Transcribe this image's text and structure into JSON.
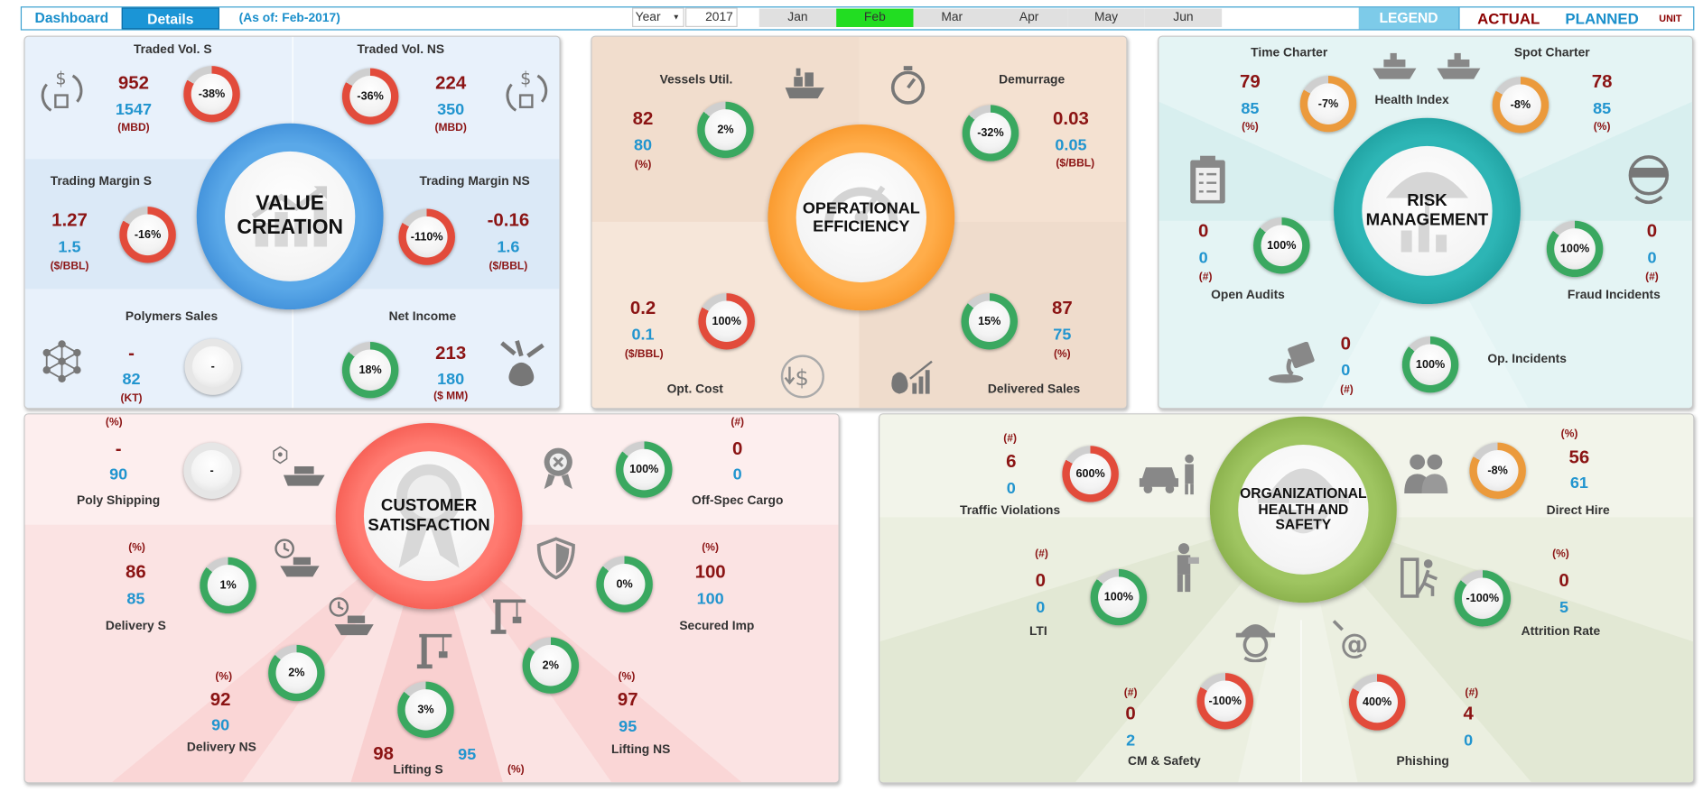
{
  "topbar": {
    "dashboard_tab": "Dashboard",
    "details_tab": "Details",
    "as_of": "(As of: Feb-2017)",
    "period_type": "Year",
    "year": "2017",
    "months": [
      "Jan",
      "Feb",
      "Mar",
      "Apr",
      "May",
      "Jun"
    ],
    "active_month": "Feb",
    "legend": "LEGEND",
    "actual": "ACTUAL",
    "planned": "PLANNED",
    "unit": "UNIT"
  },
  "colors": {
    "accent_blue": "#1b95d6",
    "actual_red": "#8b1414",
    "planned_blue": "#2295cf",
    "active_month_green": "#22dd22",
    "gauge_red": "#e24b3b",
    "gauge_green": "#3aa860",
    "gauge_orange": "#eb9a3c"
  },
  "value_creation": {
    "title": "VALUE CREATION",
    "traded_s": {
      "label": "Traded Vol. S",
      "actual": "952",
      "planned": "1547",
      "unit": "(MBD)",
      "pct": "-38%"
    },
    "traded_ns": {
      "label": "Traded Vol. NS",
      "actual": "224",
      "planned": "350",
      "unit": "(MBD)",
      "pct": "-36%"
    },
    "margin_s": {
      "label": "Trading Margin S",
      "actual": "1.27",
      "planned": "1.5",
      "unit": "($/BBL)",
      "pct": "-16%"
    },
    "margin_ns": {
      "label": "Trading Margin NS",
      "actual": "-0.16",
      "planned": "1.6",
      "unit": "($/BBL)",
      "pct": "-110%"
    },
    "polymers": {
      "label": "Polymers Sales",
      "actual": "-",
      "planned": "82",
      "unit": "(KT)",
      "pct": "-"
    },
    "net_income": {
      "label": "Net Income",
      "actual": "213",
      "planned": "180",
      "unit": "($ MM)",
      "pct": "18%"
    }
  },
  "operational_efficiency": {
    "title": "OPERATIONAL EFFICIENCY",
    "vessels": {
      "label": "Vessels Util.",
      "actual": "82",
      "planned": "80",
      "unit": "(%)",
      "pct": "2%"
    },
    "demurrage": {
      "label": "Demurrage",
      "actual": "0.03",
      "planned": "0.05",
      "unit": "($/BBL)",
      "pct": "-32%"
    },
    "opt_cost": {
      "label": "Opt. Cost",
      "actual": "0.2",
      "planned": "0.1",
      "unit": "($/BBL)",
      "pct": "100%"
    },
    "delivered": {
      "label": "Delivered Sales",
      "actual": "87",
      "planned": "75",
      "unit": "(%)",
      "pct": "15%"
    }
  },
  "risk_management": {
    "title": "RISK MANAGEMENT",
    "health_index": "Health Index",
    "time_charter": {
      "label": "Time Charter",
      "actual": "79",
      "planned": "85",
      "unit": "(%)",
      "pct": "-7%"
    },
    "spot_charter": {
      "label": "Spot Charter",
      "actual": "78",
      "planned": "85",
      "unit": "(%)",
      "pct": "-8%"
    },
    "open_audits": {
      "label": "Open Audits",
      "actual": "0",
      "planned": "0",
      "unit": "(#)",
      "pct": "100%"
    },
    "fraud": {
      "label": "Fraud Incidents",
      "actual": "0",
      "planned": "0",
      "unit": "(#)",
      "pct": "100%"
    },
    "op_incidents": {
      "label": "Op. Incidents",
      "actual": "0",
      "planned": "0",
      "unit": "(#)",
      "pct": "100%"
    }
  },
  "customer_satisfaction": {
    "title": "CUSTOMER SATISFACTION",
    "poly_shipping": {
      "label": "Poly Shipping",
      "actual": "-",
      "planned": "90",
      "unit": "(%)",
      "pct": "-"
    },
    "off_spec": {
      "label": "Off-Spec Cargo",
      "actual": "0",
      "planned": "0",
      "unit": "(#)",
      "pct": "100%"
    },
    "delivery_s": {
      "label": "Delivery S",
      "actual": "86",
      "planned": "85",
      "unit": "(%)",
      "pct": "1%"
    },
    "secured_imp": {
      "label": "Secured Imp",
      "actual": "100",
      "planned": "100",
      "unit": "(%)",
      "pct": "0%"
    },
    "delivery_ns": {
      "label": "Delivery NS",
      "actual": "92",
      "planned": "90",
      "unit": "(%)",
      "pct": "2%"
    },
    "lifting_s": {
      "label": "Lifting S",
      "actual": "98",
      "planned": "95",
      "unit": "(%)",
      "pct": "3%"
    },
    "lifting_ns": {
      "label": "Lifting NS",
      "actual": "97",
      "planned": "95",
      "unit": "(%)",
      "pct": "2%"
    }
  },
  "ohs": {
    "title": "ORGANIZATIONAL HEALTH AND SAFETY",
    "traffic": {
      "label": "Traffic Violations",
      "actual": "6",
      "planned": "0",
      "unit": "(#)",
      "pct": "600%"
    },
    "direct_hire": {
      "label": "Direct Hire",
      "actual": "56",
      "planned": "61",
      "unit": "(%)",
      "pct": "-8%"
    },
    "lti": {
      "label": "LTI",
      "actual": "0",
      "planned": "0",
      "unit": "(#)",
      "pct": "100%"
    },
    "attrition": {
      "label": "Attrition Rate",
      "actual": "0",
      "planned": "5",
      "unit": "(%)",
      "pct": "-100%"
    },
    "cm_safety": {
      "label": "CM & Safety",
      "actual": "0",
      "planned": "2",
      "unit": "(#)",
      "pct": "-100%"
    },
    "phishing": {
      "label": "Phishing",
      "actual": "4",
      "planned": "0",
      "unit": "(#)",
      "pct": "400%"
    }
  }
}
